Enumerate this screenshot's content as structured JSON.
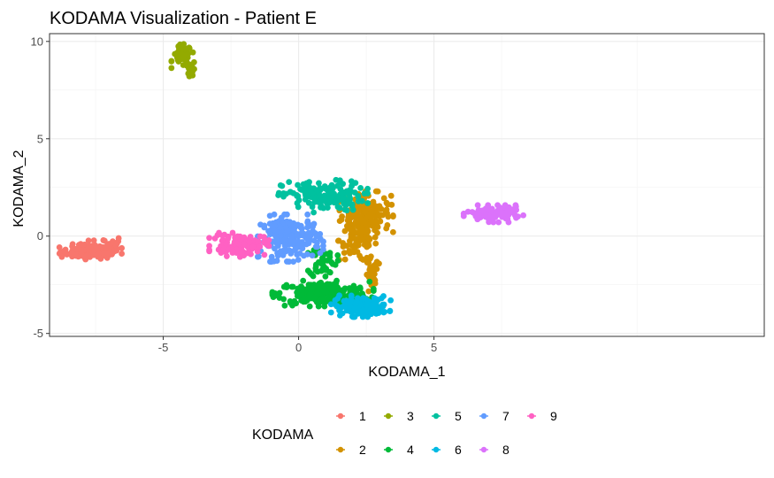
{
  "chart_data": {
    "type": "scatter",
    "title": "KODAMA Visualization - Patient E",
    "xlabel": "KODAMA_1",
    "ylabel": "KODAMA_2",
    "xlim": [
      -9.2,
      17.2
    ],
    "ylim": [
      -5.15,
      10.4
    ],
    "x_ticks": [
      -5,
      0,
      5
    ],
    "y_ticks": [
      -5,
      0,
      5,
      10
    ],
    "grid": true,
    "legend": {
      "title": "KODAMA",
      "position": "bottom",
      "entries": [
        "1",
        "3",
        "5",
        "7",
        "9",
        "2",
        "4",
        "6",
        "8"
      ]
    },
    "series": [
      {
        "name": "1",
        "color": "#F8766D",
        "clusters": [
          {
            "cx": -7.7,
            "cy": -0.8,
            "sx": 0.55,
            "sy": 0.18,
            "n": 110
          },
          {
            "cx": -7.1,
            "cy": -0.55,
            "sx": 0.3,
            "sy": 0.3,
            "n": 40
          }
        ]
      },
      {
        "name": "2",
        "color": "#D39200",
        "clusters": [
          {
            "cx": 2.5,
            "cy": 1.2,
            "sx": 0.45,
            "sy": 0.5,
            "n": 150
          },
          {
            "cx": 2.2,
            "cy": -0.2,
            "sx": 0.35,
            "sy": 0.55,
            "n": 80
          },
          {
            "cx": 2.7,
            "cy": -2.1,
            "sx": 0.12,
            "sy": 0.5,
            "n": 30
          }
        ]
      },
      {
        "name": "3",
        "color": "#93AA00",
        "clusters": [
          {
            "cx": -4.3,
            "cy": 9.25,
            "sx": 0.18,
            "sy": 0.28,
            "n": 45
          },
          {
            "cx": -3.95,
            "cy": 8.55,
            "sx": 0.08,
            "sy": 0.2,
            "n": 15
          }
        ]
      },
      {
        "name": "4",
        "color": "#00BA38",
        "clusters": [
          {
            "cx": 0.9,
            "cy": -2.95,
            "sx": 0.85,
            "sy": 0.3,
            "n": 230
          },
          {
            "cx": 0.9,
            "cy": -1.3,
            "sx": 0.25,
            "sy": 0.4,
            "n": 45
          }
        ]
      },
      {
        "name": "5",
        "color": "#00C19F",
        "clusters": [
          {
            "cx": 0.9,
            "cy": 2.05,
            "sx": 0.75,
            "sy": 0.38,
            "n": 160
          }
        ]
      },
      {
        "name": "6",
        "color": "#00B9E3",
        "clusters": [
          {
            "cx": 2.3,
            "cy": -3.6,
            "sx": 0.5,
            "sy": 0.25,
            "n": 130
          }
        ]
      },
      {
        "name": "7",
        "color": "#619CFF",
        "clusters": [
          {
            "cx": -0.3,
            "cy": -0.1,
            "sx": 0.55,
            "sy": 0.55,
            "n": 190
          }
        ]
      },
      {
        "name": "8",
        "color": "#DB72FB",
        "clusters": [
          {
            "cx": 7.2,
            "cy": 1.15,
            "sx": 0.5,
            "sy": 0.2,
            "n": 110
          }
        ]
      },
      {
        "name": "9",
        "color": "#FF61C3",
        "clusters": [
          {
            "cx": -2.2,
            "cy": -0.45,
            "sx": 0.5,
            "sy": 0.28,
            "n": 110
          }
        ]
      }
    ]
  }
}
